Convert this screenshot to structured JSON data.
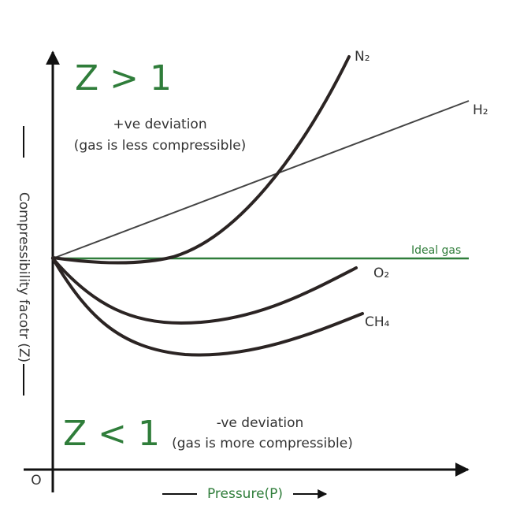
{
  "regions": {
    "upper": {
      "label": "Z > 1",
      "title": "+ve deviation",
      "note": "(gas is less compressible)"
    },
    "lower": {
      "label": "Z < 1",
      "title": "-ve deviation",
      "note": "(gas is more compressible)"
    }
  },
  "axes": {
    "y_label": "Compressibility facotr (Z)",
    "x_label": "Pressure(P)",
    "origin": "O"
  },
  "curves": {
    "n2": "N₂",
    "h2": "H₂",
    "ideal": "Ideal gas",
    "o2": "O₂",
    "ch4": "CH₄"
  }
}
